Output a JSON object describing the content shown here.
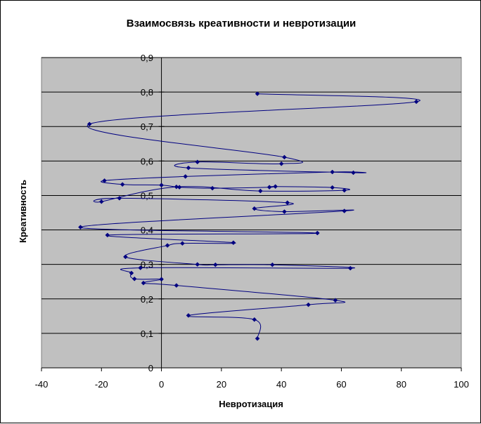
{
  "chart_data": {
    "type": "line",
    "title": "Взаимосвязь креативности и невротизации",
    "xlabel": "Невротизация",
    "ylabel": "Креативность",
    "xlim": [
      -40,
      100
    ],
    "ylim": [
      0,
      0.9
    ],
    "x_ticks": [
      "-40",
      "-20",
      "0",
      "20",
      "40",
      "60",
      "80",
      "100"
    ],
    "y_ticks": [
      "0",
      "0,1",
      "0,2",
      "0,3",
      "0,4",
      "0,5",
      "0,6",
      "0,7",
      "0,8",
      "0,9"
    ],
    "grid": "horizontal",
    "legend": "none",
    "plot_background": "#c0c0c0",
    "series_color": "#000080",
    "series": [
      {
        "points": [
          [
            32,
            0.795
          ],
          [
            85,
            0.772
          ],
          [
            -24,
            0.707
          ],
          [
            41,
            0.611
          ],
          [
            40,
            0.592
          ],
          [
            12,
            0.597
          ],
          [
            9,
            0.58
          ],
          [
            64,
            0.566
          ],
          [
            57,
            0.568
          ],
          [
            8,
            0.555
          ],
          [
            -19,
            0.543
          ],
          [
            -13,
            0.532
          ],
          [
            0,
            0.53
          ],
          [
            6,
            0.524
          ],
          [
            17,
            0.521
          ],
          [
            36,
            0.524
          ],
          [
            38,
            0.526
          ],
          [
            57,
            0.523
          ],
          [
            61,
            0.515
          ],
          [
            33,
            0.513
          ],
          [
            5,
            0.525
          ],
          [
            -20,
            0.482
          ],
          [
            -14,
            0.492
          ],
          [
            42,
            0.479
          ],
          [
            31,
            0.462
          ],
          [
            41,
            0.453
          ],
          [
            61,
            0.455
          ],
          [
            -27,
            0.408
          ],
          [
            52,
            0.391
          ],
          [
            -18,
            0.385
          ],
          [
            24,
            0.363
          ],
          [
            7,
            0.361
          ],
          [
            2,
            0.355
          ],
          [
            -12,
            0.322
          ],
          [
            12,
            0.3
          ],
          [
            18,
            0.299
          ],
          [
            37,
            0.299
          ],
          [
            63,
            0.289
          ],
          [
            -7,
            0.29
          ],
          [
            -10,
            0.275
          ],
          [
            -9,
            0.258
          ],
          [
            0,
            0.257
          ],
          [
            -6,
            0.246
          ],
          [
            5,
            0.239
          ],
          [
            58,
            0.196
          ],
          [
            49,
            0.183
          ],
          [
            9,
            0.152
          ],
          [
            31,
            0.14
          ],
          [
            32,
            0.085
          ]
        ]
      }
    ]
  }
}
